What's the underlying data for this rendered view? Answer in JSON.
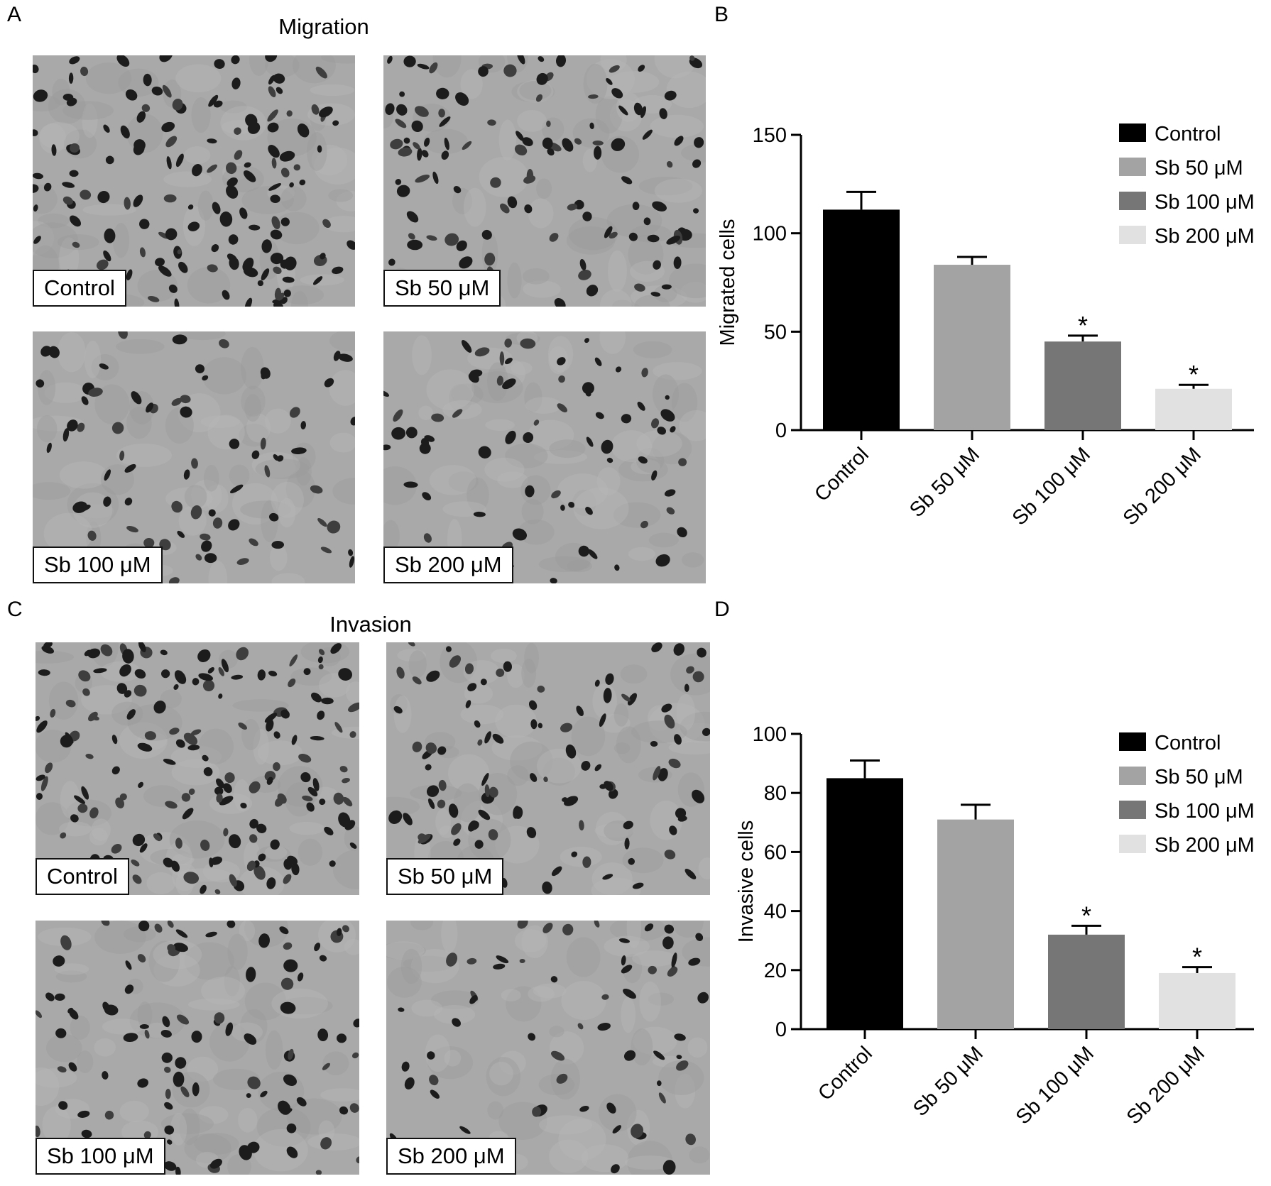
{
  "panels": {
    "a": {
      "letter": "A",
      "title": "Migration"
    },
    "b": {
      "letter": "B"
    },
    "c": {
      "letter": "C",
      "title": "Invasion"
    },
    "d": {
      "letter": "D"
    }
  },
  "micrographs": {
    "migration": [
      {
        "label": "Control"
      },
      {
        "label": "Sb 50 μM"
      },
      {
        "label": "Sb 100 μM"
      },
      {
        "label": "Sb 200 μM"
      }
    ],
    "invasion": [
      {
        "label": "Control"
      },
      {
        "label": "Sb 50 μM"
      },
      {
        "label": "Sb 100 μM"
      },
      {
        "label": "Sb 200 μM"
      }
    ]
  },
  "chart_data": [
    {
      "type": "bar",
      "ylabel": "Migrated cells",
      "categories": [
        "Control",
        "Sb 50 μM",
        "Sb 100 μM",
        "Sb 200 μM"
      ],
      "values": [
        112,
        84,
        45,
        21
      ],
      "errors": [
        9,
        4,
        3,
        2
      ],
      "significance": [
        "",
        "",
        "*",
        "*"
      ],
      "colors": [
        "#000000",
        "#a3a3a3",
        "#767676",
        "#e1e1e1"
      ],
      "ylim": [
        0,
        150
      ],
      "yticks": [
        0,
        50,
        100,
        150
      ],
      "legend": [
        "Control",
        "Sb 50 μM",
        "Sb 100 μM",
        "Sb 200 μM"
      ],
      "legend_position": "top-right",
      "grid": false
    },
    {
      "type": "bar",
      "ylabel": "Invasive cells",
      "categories": [
        "Control",
        "Sb 50 μM",
        "Sb 100 μM",
        "Sb 200 μM"
      ],
      "values": [
        85,
        71,
        32,
        19
      ],
      "errors": [
        6,
        5,
        3,
        2
      ],
      "significance": [
        "",
        "",
        "*",
        "*"
      ],
      "colors": [
        "#000000",
        "#a3a3a3",
        "#767676",
        "#e1e1e1"
      ],
      "ylim": [
        0,
        100
      ],
      "yticks": [
        0,
        20,
        40,
        60,
        80,
        100
      ],
      "legend": [
        "Control",
        "Sb 50 μM",
        "Sb 100 μM",
        "Sb 200 μM"
      ],
      "legend_position": "top-right",
      "grid": false
    }
  ]
}
